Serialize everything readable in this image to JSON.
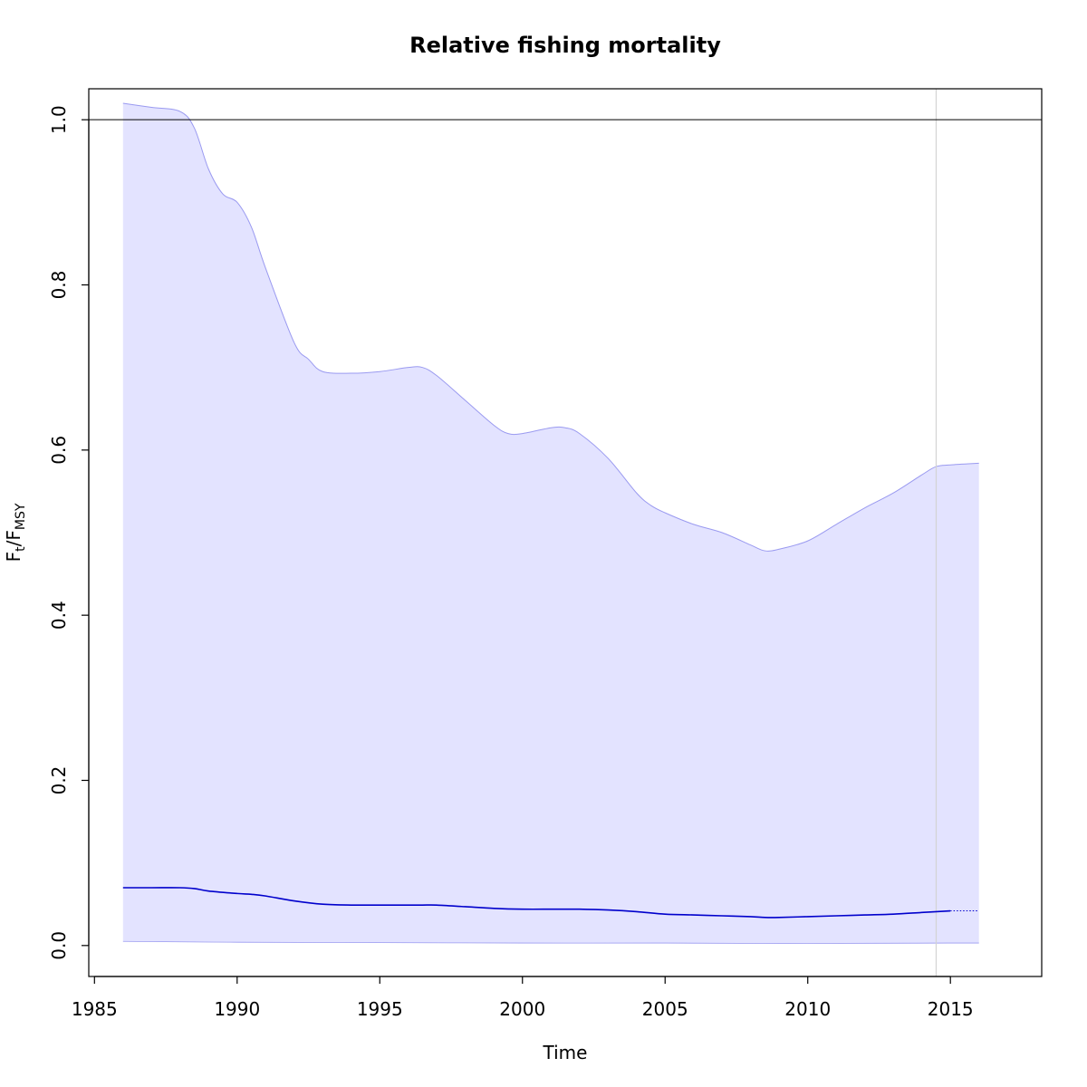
{
  "chart_data": {
    "type": "area",
    "title": "Relative fishing mortality",
    "xlabel": "Time",
    "ylabel": {
      "main": "F",
      "sub1": "t",
      "sep": "/F",
      "sub2": "MSY"
    },
    "xlim": [
      1984.8,
      2018.2
    ],
    "ylim": [
      -0.0375,
      1.0375
    ],
    "x_ticks": [
      1985,
      1990,
      1995,
      2000,
      2005,
      2010,
      2015
    ],
    "y_ticks": [
      0.0,
      0.2,
      0.4,
      0.6,
      0.8,
      1.0
    ],
    "y_tick_labels": [
      "0.0",
      "0.2",
      "0.4",
      "0.6",
      "0.8",
      "1.0"
    ],
    "reference_line_y": 1.0,
    "vertical_marker_x": 2014.5,
    "colors": {
      "band_fill": "#e3e3ff",
      "band_edge": "#9a9af0",
      "estimate_line": "#0000cc",
      "reference_line": "#000000",
      "vertical_marker": "#d3d3d3",
      "frame": "#000000"
    },
    "series": [
      {
        "role": "upper-ci",
        "x": [
          1986,
          1987,
          1988,
          1988.5,
          1989,
          1989.5,
          1990,
          1990.5,
          1991,
          1992,
          1992.5,
          1993,
          1994,
          1995,
          1996,
          1996.5,
          1997,
          1998,
          1999,
          1999.5,
          2000,
          2001,
          2001.5,
          2002,
          2003,
          2004,
          2004.5,
          2005,
          2006,
          2007,
          2008,
          2008.5,
          2009,
          2010,
          2011,
          2012,
          2013,
          2014,
          2014.5,
          2015,
          2016
        ],
        "y": [
          1.02,
          1.015,
          1.01,
          0.99,
          0.94,
          0.91,
          0.9,
          0.87,
          0.82,
          0.73,
          0.71,
          0.695,
          0.693,
          0.695,
          0.7,
          0.7,
          0.69,
          0.66,
          0.63,
          0.62,
          0.62,
          0.627,
          0.627,
          0.62,
          0.59,
          0.548,
          0.533,
          0.524,
          0.51,
          0.5,
          0.485,
          0.478,
          0.48,
          0.49,
          0.51,
          0.53,
          0.548,
          0.57,
          0.58,
          0.582,
          0.584
        ]
      },
      {
        "role": "estimate",
        "x": [
          1986,
          1987,
          1988,
          1988.5,
          1989,
          1990,
          1990.5,
          1991,
          1992,
          1993,
          1994,
          1995,
          1996,
          1996.5,
          1997,
          1998,
          1999,
          2000,
          2001,
          2001.5,
          2002,
          2003,
          2004,
          2005,
          2006,
          2007,
          2008,
          2008.5,
          2009,
          2010,
          2011,
          2012,
          2013,
          2014,
          2015
        ],
        "y": [
          0.07,
          0.07,
          0.07,
          0.069,
          0.066,
          0.063,
          0.062,
          0.06,
          0.054,
          0.05,
          0.049,
          0.049,
          0.049,
          0.049,
          0.049,
          0.047,
          0.045,
          0.044,
          0.044,
          0.044,
          0.044,
          0.043,
          0.041,
          0.038,
          0.037,
          0.036,
          0.035,
          0.034,
          0.034,
          0.035,
          0.036,
          0.037,
          0.038,
          0.04,
          0.042
        ]
      },
      {
        "role": "projection",
        "x": [
          2015,
          2016
        ],
        "y": [
          0.042,
          0.042
        ]
      },
      {
        "role": "lower-ci",
        "x": [
          1986,
          1990,
          1995,
          2000,
          2005,
          2008.5,
          2010,
          2015,
          2016
        ],
        "y": [
          0.005,
          0.004,
          0.0035,
          0.003,
          0.003,
          0.0025,
          0.0025,
          0.003,
          0.003
        ]
      }
    ]
  }
}
